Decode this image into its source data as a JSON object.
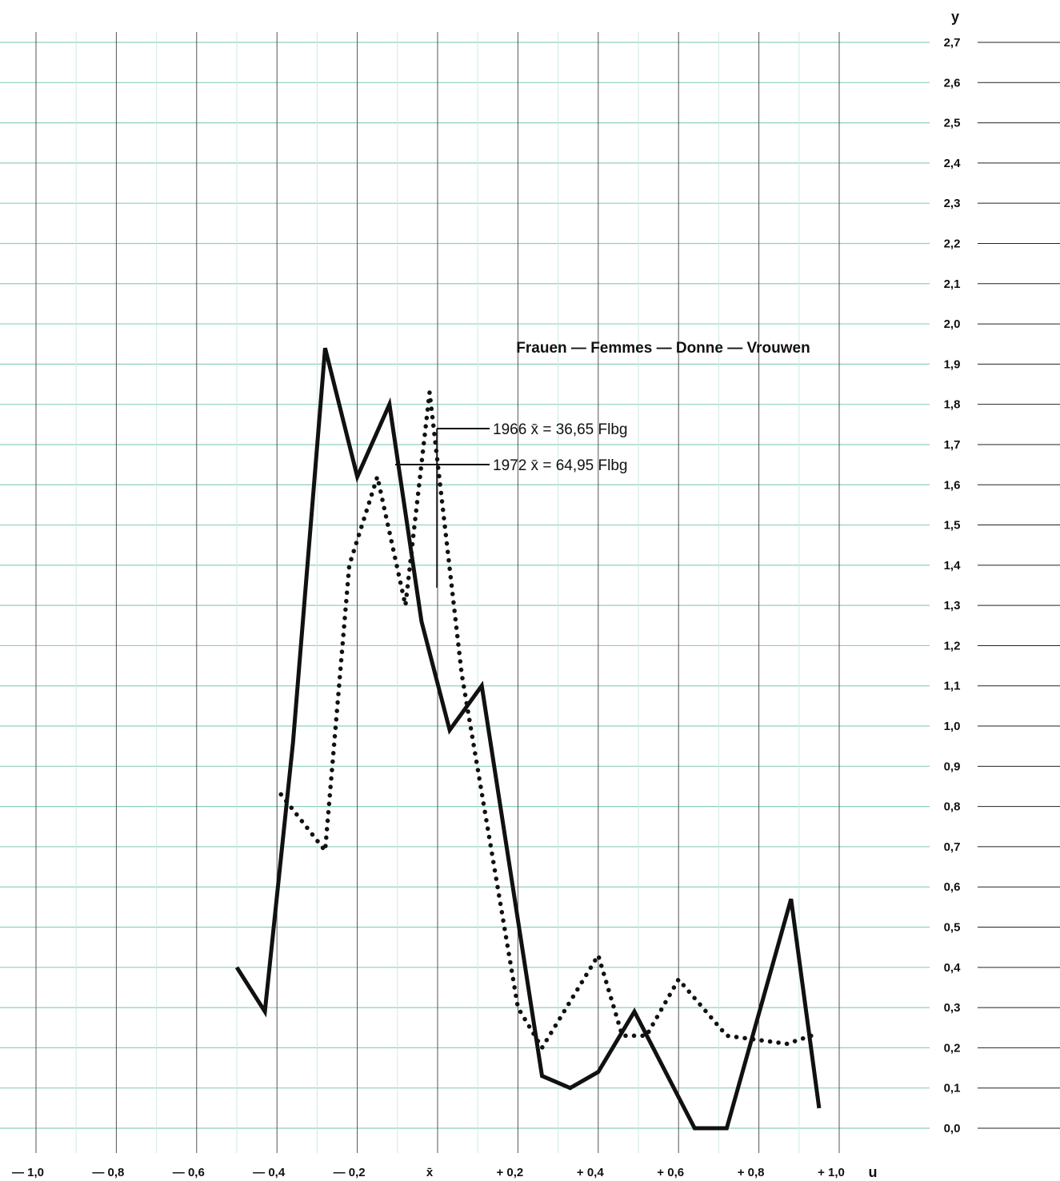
{
  "chart_data": {
    "type": "line",
    "title": "Frauen — Femmes — Donne — Vrouwen",
    "xlabel": "u",
    "ylabel": "y",
    "xlim": [
      -1.0,
      1.0
    ],
    "ylim": [
      0.0,
      2.7
    ],
    "grid": true,
    "x_tick_labels": [
      "— 1,0",
      "— 0,8",
      "— 0,6",
      "— 0,4",
      "— 0,2",
      "x̄",
      "+ 0,2",
      "+ 0,4",
      "+ 0,6",
      "+ 0,8",
      "+ 1,0"
    ],
    "y_tick_labels": [
      "0,0",
      "0,1",
      "0,2",
      "0,3",
      "0,4",
      "0,5",
      "0,6",
      "0,7",
      "0,8",
      "0,9",
      "1,0",
      "1,1",
      "1,2",
      "1,3",
      "1,4",
      "1,5",
      "1,6",
      "1,7",
      "1,8",
      "1,9",
      "2,0",
      "2,1",
      "2,2",
      "2,3",
      "2,4",
      "2,5",
      "2,6",
      "2,7"
    ],
    "series": [
      {
        "name": "1966 x̄ = 36,65 Flbg",
        "style": "dotted",
        "color": "#111111",
        "x": [
          -0.39,
          -0.28,
          -0.22,
          -0.15,
          -0.08,
          -0.02,
          0.06,
          0.2,
          0.26,
          0.4,
          0.46,
          0.52,
          0.6,
          0.72,
          0.87,
          0.93
        ],
        "y": [
          0.83,
          0.69,
          1.4,
          1.62,
          1.3,
          1.83,
          1.13,
          0.3,
          0.2,
          0.43,
          0.23,
          0.23,
          0.37,
          0.23,
          0.21,
          0.23
        ]
      },
      {
        "name": "1972 x̄ = 64,95 Flbg",
        "style": "solid",
        "color": "#111111",
        "x": [
          -0.5,
          -0.43,
          -0.36,
          -0.28,
          -0.2,
          -0.12,
          -0.04,
          0.03,
          0.11,
          0.26,
          0.33,
          0.4,
          0.49,
          0.64,
          0.72,
          0.88,
          0.95
        ],
        "y": [
          0.4,
          0.29,
          0.96,
          1.94,
          1.62,
          1.8,
          1.26,
          0.99,
          1.1,
          0.13,
          0.1,
          0.14,
          0.29,
          0.0,
          0.0,
          0.57,
          0.05
        ]
      }
    ],
    "annotations": [
      "1966 x̄ = 36,65 Flbg",
      "1972 x̄ = 64,95 Flbg"
    ],
    "colors": {
      "grid": "#8fcfbf",
      "grid_minor": "#cfe9e0",
      "line": "#111111"
    }
  }
}
